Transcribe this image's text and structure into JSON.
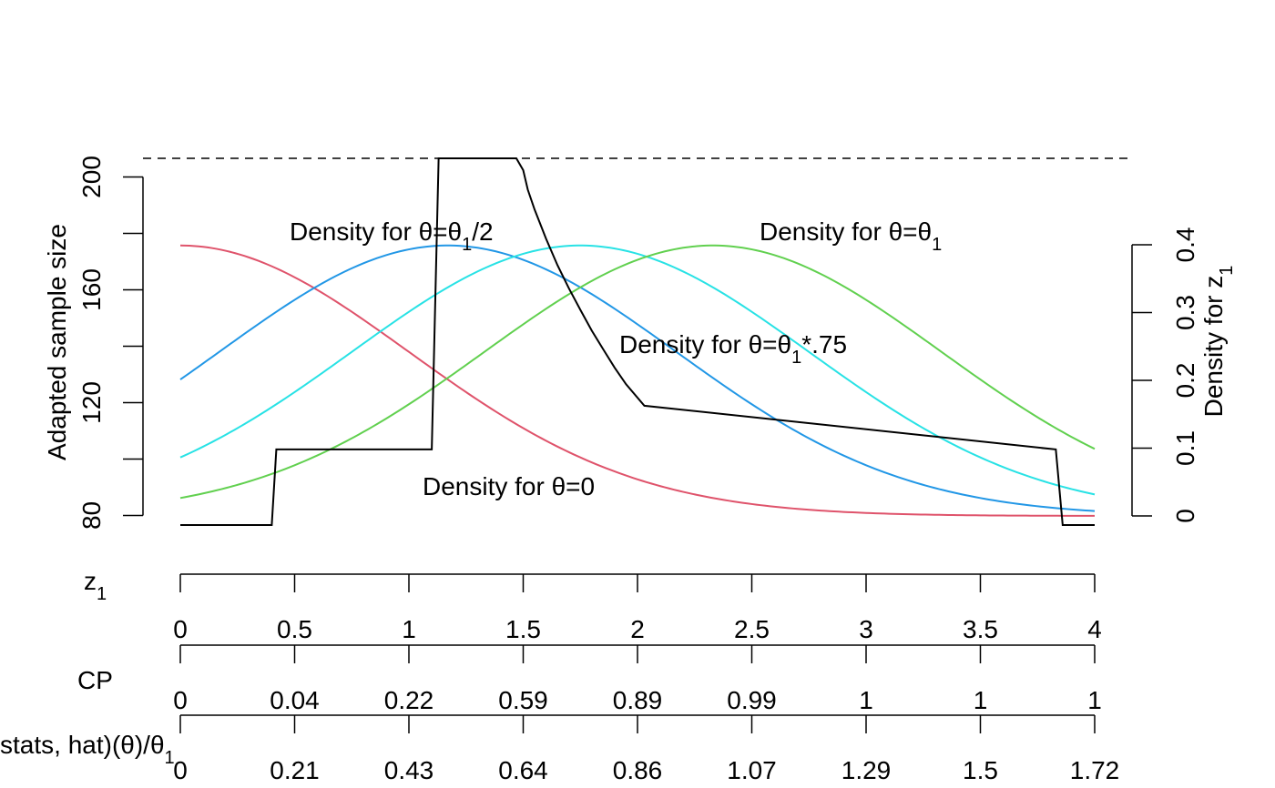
{
  "chart_data": {
    "type": "line",
    "colors": {
      "sample_size": "#000000",
      "theta0": "#DF536B",
      "theta_half": "#2297E6",
      "theta_075": "#28E2E5",
      "theta1": "#61D04F",
      "max_line": "#000000"
    },
    "x_range": [
      0,
      4
    ],
    "left_axis": {
      "title": "Adapted sample size",
      "range": [
        76.6,
        206.6
      ],
      "ticks": [
        80,
        100,
        120,
        140,
        160,
        180,
        200
      ],
      "tick_labels": [
        "80",
        "",
        "120",
        "",
        "160",
        "",
        "200"
      ]
    },
    "right_axis": {
      "title_main": "Density for z",
      "title_sub": "1",
      "range": [
        0,
        0.4
      ],
      "ticks": [
        0,
        0.1,
        0.2,
        0.3,
        0.4
      ],
      "tick_labels": [
        "0",
        "0.1",
        "0.2",
        "0.3",
        "0.4"
      ]
    },
    "max_sample_size": 206.6,
    "sample_size_curve": {
      "name": "",
      "x": [
        0,
        0.4,
        0.42,
        1.1,
        1.13,
        1.47,
        1.5,
        1.52,
        1.55,
        1.6,
        1.65,
        1.7,
        1.75,
        1.8,
        1.85,
        1.9,
        1.95,
        2.03,
        3.83,
        3.86,
        4.0
      ],
      "y": [
        76.6,
        76.6,
        103.4,
        103.4,
        206.6,
        206.6,
        202.4,
        195.5,
        188.4,
        178.1,
        168.7,
        160.5,
        152.9,
        145.5,
        138.9,
        132.4,
        126.5,
        118.9,
        103.4,
        76.6,
        76.6
      ]
    },
    "density_curves": [
      {
        "key": "theta0",
        "name": "Density for θ=0",
        "mean": 0,
        "sd": 1
      },
      {
        "key": "theta_half",
        "name": "Density for θ=θ1/2",
        "mean": 1.17,
        "sd": 1
      },
      {
        "key": "theta_075",
        "name": "Density for θ=θ1*.75",
        "mean": 1.75,
        "sd": 1
      },
      {
        "key": "theta1",
        "name": "Density for θ=θ1",
        "mean": 2.33,
        "sd": 1
      }
    ],
    "bottom_axes": [
      {
        "title_main": "z",
        "title_sub": "1",
        "title_tail": "",
        "tick_x": [
          0,
          0.5,
          1,
          1.5,
          2,
          2.5,
          3,
          3.5,
          4
        ],
        "tick_labels": [
          "0",
          "0.5",
          "1",
          "1.5",
          "2",
          "2.5",
          "3",
          "3.5",
          "4"
        ]
      },
      {
        "title_main": "CP",
        "title_sub": "",
        "title_tail": "",
        "tick_x": [
          0,
          0.5,
          1,
          1.5,
          2,
          2.5,
          3,
          3.5,
          4
        ],
        "tick_labels": [
          "0",
          "0.04",
          "0.22",
          "0.59",
          "0.89",
          "0.99",
          "1",
          "1",
          "1"
        ]
      },
      {
        "title_main": "stats, hat)(θ)/θ",
        "title_sub": "1",
        "title_tail": "",
        "tick_x": [
          0,
          0.5,
          1,
          1.5,
          2,
          2.5,
          3,
          3.5,
          4
        ],
        "tick_labels": [
          "0",
          "0.21",
          "0.43",
          "0.64",
          "0.86",
          "1.07",
          "1.29",
          "1.5",
          "1.72"
        ]
      }
    ],
    "annotations": {
      "theta_half": {
        "pre": "Density for θ=θ",
        "sub": "1",
        "post": "/2"
      },
      "theta1": {
        "pre": "Density for θ=θ",
        "sub": "1",
        "post": ""
      },
      "theta_075": {
        "pre": "Density for θ=θ",
        "sub": "1",
        "post": "*.75"
      },
      "theta0": {
        "pre": "Density for θ=0",
        "sub": "",
        "post": ""
      }
    }
  }
}
